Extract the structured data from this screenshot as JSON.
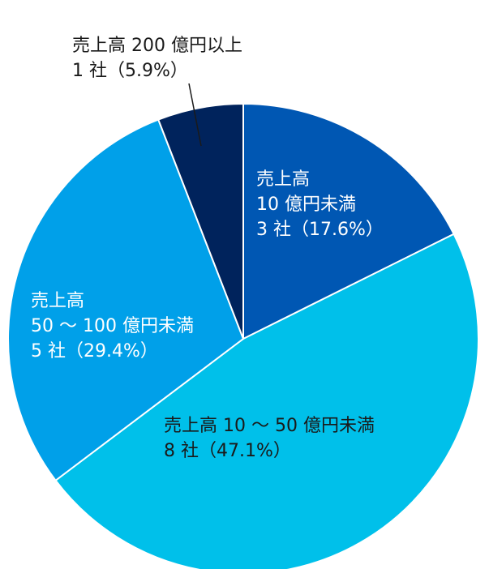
{
  "chart_data": {
    "type": "pie",
    "categories": [
      "売上高 10 億円未満",
      "売上高 10 ～ 50 億円未満",
      "売上高 50 ～ 100 億円未満",
      "売上高 200 億円以上"
    ],
    "values": [
      3,
      8,
      5,
      1
    ],
    "percentages": [
      17.6,
      47.1,
      29.4,
      5.9
    ],
    "colors": [
      "#0057b3",
      "#00c0ea",
      "#00a0e9",
      "#00235c"
    ],
    "labels": [
      {
        "lines": [
          "売上高",
          "10 億円未満",
          "3 社（17.6%）"
        ]
      },
      {
        "lines": [
          "売上高 10 ～ 50 億円未満",
          "8 社（47.1%）"
        ]
      },
      {
        "lines": [
          "売上高",
          "50 ～ 100 億円未満",
          "5 社（29.4%）"
        ]
      },
      {
        "lines": [
          "売上高 200 億円以上",
          "1 社（5.9%）"
        ]
      }
    ]
  }
}
